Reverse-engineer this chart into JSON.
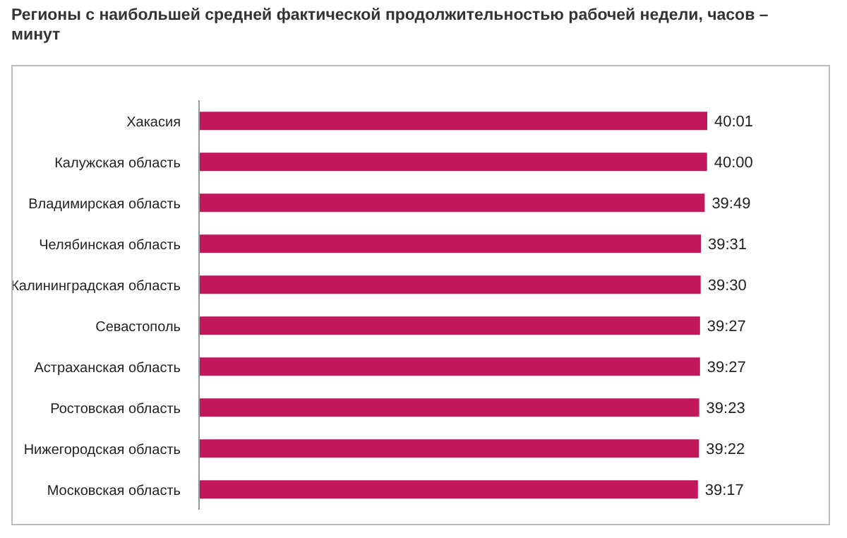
{
  "chart_data": {
    "type": "bar",
    "orientation": "horizontal",
    "tick_labels": "y",
    "title": "Регионы с наибольшей средней фактической продолжительностью рабочей недели, часов – минут",
    "categories": [
      "Хакасия",
      "Калужская область",
      "Владимирская область",
      "Челябинская область",
      "Калининградская область",
      "Севастополь",
      "Астраханская область",
      "Ростовская область",
      "Нижегородская область",
      "Московская область"
    ],
    "values": [
      40.017,
      40,
      39.817,
      39.517,
      39.5,
      39.45,
      39.45,
      39.383,
      39.367,
      39.283
    ],
    "value_labels": [
      "40:01",
      "40:00",
      "39:49",
      "39:31",
      "39:30",
      "39:27",
      "39:27",
      "39:23",
      "39:22",
      "39:17"
    ],
    "color": "#c2185b",
    "grid": false,
    "legend": false
  }
}
